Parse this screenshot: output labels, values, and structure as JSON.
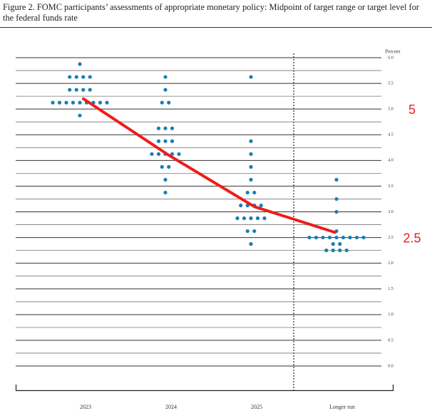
{
  "chart_data": {
    "type": "dot",
    "title": "Figure 2.  FOMC participants’ assessments of appropriate monetary policy:  Midpoint of target range or target level for the federal funds rate",
    "y_label": "Percent",
    "categories": [
      "2023",
      "2024",
      "2025",
      "Longer run"
    ],
    "values": [
      [
        5.875,
        5.625,
        5.625,
        5.625,
        5.625,
        5.375,
        5.375,
        5.375,
        5.375,
        5.125,
        5.125,
        5.125,
        5.125,
        5.125,
        5.125,
        5.125,
        5.125,
        5.125,
        4.875
      ],
      [
        5.625,
        5.375,
        5.125,
        5.125,
        4.625,
        4.625,
        4.625,
        4.375,
        4.375,
        4.375,
        4.125,
        4.125,
        4.125,
        4.125,
        4.125,
        3.875,
        3.875,
        3.625,
        3.375
      ],
      [
        5.625,
        4.375,
        4.125,
        3.875,
        3.625,
        3.375,
        3.375,
        3.125,
        3.125,
        3.125,
        3.125,
        2.875,
        2.875,
        2.875,
        2.875,
        2.875,
        2.625,
        2.625,
        2.375
      ],
      [
        3.625,
        3.25,
        3.0,
        2.625,
        2.5,
        2.5,
        2.5,
        2.5,
        2.5,
        2.5,
        2.5,
        2.5,
        2.5,
        2.375,
        2.375,
        2.25,
        2.25,
        2.25,
        2.25
      ]
    ],
    "color": "#1a7db3",
    "ylim": [
      0,
      6
    ],
    "yticks": [
      {
        "value": 0,
        "label": "0.0"
      },
      {
        "value": 0.5,
        "label": "0.5"
      },
      {
        "value": 1,
        "label": "1.0"
      },
      {
        "value": 1.5,
        "label": "1.5"
      },
      {
        "value": 2,
        "label": "2.0"
      },
      {
        "value": 2.5,
        "label": "2.5"
      },
      {
        "value": 3,
        "label": "3.0"
      },
      {
        "value": 3.5,
        "label": "3.5"
      },
      {
        "value": 4,
        "label": "4.0"
      },
      {
        "value": 4.5,
        "label": "4.5"
      },
      {
        "value": 5,
        "label": "5.0"
      },
      {
        "value": 5.5,
        "label": "5.5"
      },
      {
        "value": 6,
        "label": "6.0"
      }
    ],
    "minor_yticks": [
      0.25,
      0.75,
      1.25,
      1.75,
      2.25,
      2.75,
      3.25,
      3.75,
      4.25,
      4.75,
      5.25,
      5.75
    ],
    "grid": true,
    "trend_line": {
      "color": "#ee1c1c",
      "values": [
        5.2,
        4.1,
        3.1,
        2.6
      ]
    },
    "annotations": [
      {
        "text": "5",
        "value": 5,
        "color": "#ee1c1c"
      },
      {
        "text": "2.5",
        "value": 2.5,
        "color": "#ee1c1c"
      }
    ]
  }
}
